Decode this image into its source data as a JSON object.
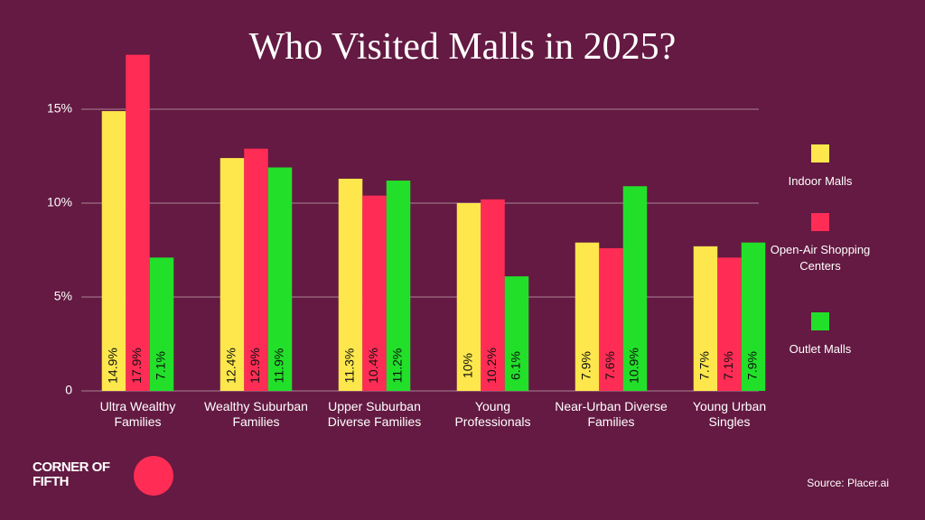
{
  "chart_data": {
    "type": "bar",
    "title": "Who Visited Malls in 2025?",
    "categories": [
      "Ultra Wealthy Families",
      "Wealthy Suburban Families",
      "Upper Suburban Diverse Families",
      "Young Professionals",
      "Near-Urban Diverse Families",
      "Young Urban Singles"
    ],
    "series": [
      {
        "name": "Indoor Malls",
        "color": "#fde74c",
        "values": [
          14.9,
          12.4,
          11.3,
          10,
          7.9,
          7.7
        ],
        "value_labels": [
          "14.9%",
          "12.4%",
          "11.3%",
          "10%",
          "7.9%",
          "7.7%"
        ]
      },
      {
        "name": "Open-Air Shopping Centers",
        "color": "#ff2d55",
        "values": [
          17.9,
          12.9,
          10.4,
          10.2,
          7.6,
          7.1
        ],
        "value_labels": [
          "17.9%",
          "12.9%",
          "10.4%",
          "10.2%",
          "7.6%",
          "7.1%"
        ]
      },
      {
        "name": "Outlet Malls",
        "color": "#22e02a",
        "values": [
          7.1,
          11.9,
          11.2,
          6.1,
          10.9,
          7.9
        ],
        "value_labels": [
          "7.1%",
          "11.9%",
          "11.2%",
          "6.1%",
          "10.9%",
          "7.9%"
        ]
      }
    ],
    "ylim": [
      0,
      18
    ],
    "yticks": [
      0,
      {
        "value": 5,
        "label": "5%"
      },
      {
        "value": 10,
        "label": "10%"
      },
      {
        "value": 15,
        "label": "15%"
      }
    ],
    "grid": true,
    "legend": "right",
    "source": "Source: Placer.ai",
    "logo": "CORNER OF FIFTH"
  }
}
